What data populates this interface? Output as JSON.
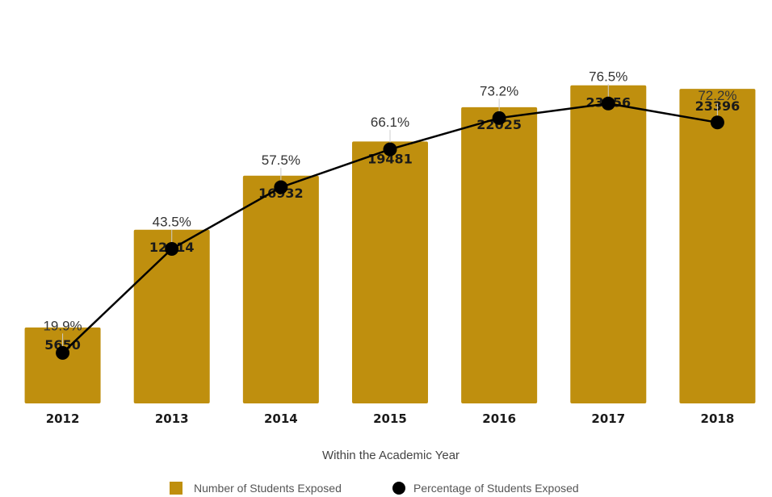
{
  "chart_data": {
    "type": "bar",
    "categories": [
      "2012",
      "2013",
      "2014",
      "2015",
      "2016",
      "2017",
      "2018"
    ],
    "series": [
      {
        "name": "Number of Students Exposed",
        "type": "bar",
        "values": [
          5650,
          12914,
          16932,
          19481,
          22025,
          23656,
          23396
        ],
        "labels": [
          "5650",
          "12914",
          "16932",
          "19481",
          "22025",
          "23656",
          "23396"
        ],
        "color": "#BF8F0E"
      },
      {
        "name": "Percentage of Students Exposed",
        "type": "line",
        "values": [
          19.9,
          43.5,
          57.5,
          66.1,
          73.2,
          76.5,
          72.2
        ],
        "labels": [
          "19.9%",
          "43.5%",
          "57.5%",
          "66.1%",
          "73.2%",
          "76.5%",
          "72.2%"
        ],
        "color": "#000000"
      }
    ],
    "xlabel": "Within the Academic Year",
    "ylim_bar": [
      0,
      30000
    ],
    "ylim_line": [
      0,
      100
    ],
    "grid": false,
    "legend": "bottom"
  }
}
